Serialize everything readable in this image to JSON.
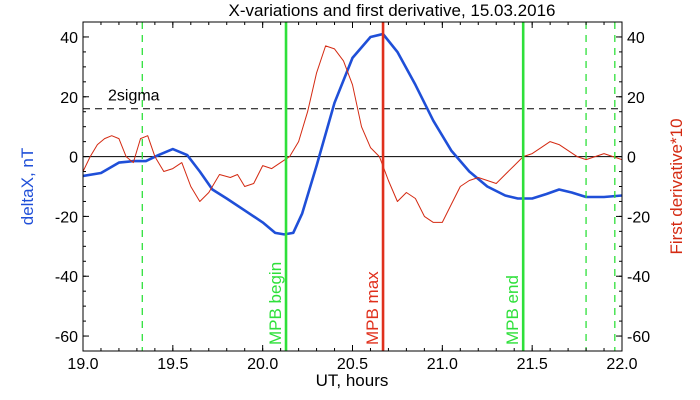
{
  "chart_data": {
    "type": "line",
    "title": "X-variations and first derivative, 15.03.2016",
    "xlabel": "UT, hours",
    "ylabel_left": "deltaX, nT",
    "ylabel_right": "First derivative*10",
    "xlim": [
      19.0,
      22.0
    ],
    "ylim": [
      -65,
      45
    ],
    "xticks": [
      19.0,
      19.5,
      20.0,
      20.5,
      21.0,
      21.5,
      22.0
    ],
    "xtick_labels": [
      "19.0",
      "19.5",
      "20.0",
      "20.5",
      "21.0",
      "21.5",
      "22.0"
    ],
    "yticks": [
      40,
      20,
      0,
      -20,
      -40,
      -60
    ],
    "ytick_labels": [
      "40",
      "20",
      "0",
      "-20",
      "-40",
      "-60"
    ],
    "colors": {
      "deltaX": "#1f4fd8",
      "derivative": "#d42a12",
      "zero_line": "#000000",
      "sigma_line": "#000000",
      "event_line_green": "#2ee03a",
      "event_line_red": "#e0301c",
      "dashed_green": "#2ee03a",
      "ylabel_left": "#1f4fd8",
      "ylabel_right": "#d42a12"
    },
    "series": [
      {
        "key": "deltaX",
        "axis": "left",
        "x": [
          19.0,
          19.1,
          19.2,
          19.28,
          19.35,
          19.42,
          19.5,
          19.58,
          19.65,
          19.72,
          19.8,
          19.9,
          20.0,
          20.07,
          20.12,
          20.17,
          20.22,
          20.3,
          20.4,
          20.5,
          20.6,
          20.67,
          20.75,
          20.85,
          20.95,
          21.05,
          21.15,
          21.25,
          21.35,
          21.42,
          21.5,
          21.58,
          21.65,
          21.72,
          21.8,
          21.9,
          22.0
        ],
        "values": [
          -6.5,
          -5.5,
          -2,
          -1.5,
          -1.5,
          0.5,
          2.5,
          0.5,
          -5,
          -11,
          -14,
          -18,
          -22,
          -25.5,
          -26,
          -25.5,
          -19,
          -3,
          18,
          33,
          40,
          41,
          35,
          24,
          12,
          2,
          -5,
          -10,
          -13,
          -14,
          -14,
          -12.5,
          -11,
          -12,
          -13.5,
          -13.5,
          -13
        ]
      },
      {
        "key": "derivative",
        "axis": "right",
        "x": [
          19.0,
          19.04,
          19.08,
          19.12,
          19.16,
          19.2,
          19.24,
          19.28,
          19.32,
          19.36,
          19.4,
          19.45,
          19.5,
          19.55,
          19.6,
          19.65,
          19.7,
          19.76,
          19.82,
          19.86,
          19.9,
          19.95,
          20.0,
          20.05,
          20.1,
          20.15,
          20.2,
          20.25,
          20.3,
          20.35,
          20.4,
          20.45,
          20.5,
          20.55,
          20.6,
          20.65,
          20.7,
          20.75,
          20.8,
          20.85,
          20.9,
          20.95,
          21.0,
          21.05,
          21.1,
          21.15,
          21.2,
          21.25,
          21.3,
          21.35,
          21.4,
          21.45,
          21.5,
          21.55,
          21.6,
          21.65,
          21.7,
          21.75,
          21.8,
          21.85,
          21.9,
          21.95,
          22.0
        ],
        "values": [
          -5,
          0,
          4,
          6,
          7,
          6,
          0,
          -2,
          6,
          7,
          0,
          -5,
          -4,
          -2,
          -10,
          -15,
          -12,
          -6,
          -7,
          -6,
          -10,
          -9,
          -3,
          -4,
          -2,
          0,
          5,
          15,
          28,
          37,
          36,
          32,
          24,
          10,
          3,
          0,
          -8,
          -15,
          -12,
          -14,
          -20,
          -22,
          -22,
          -16,
          -10,
          -8,
          -7,
          -8,
          -9,
          -6,
          -3,
          0,
          1,
          3,
          5,
          4,
          2,
          0,
          -1,
          0,
          1,
          0,
          -1
        ]
      }
    ],
    "hlines": [
      {
        "y": 0,
        "style": "solid"
      },
      {
        "y": 16,
        "style": "dashed",
        "label": "2sigma"
      }
    ],
    "vlines": [
      {
        "x": 19.33,
        "style": "dashed",
        "color": "green"
      },
      {
        "x": 20.13,
        "style": "solid",
        "color": "green",
        "label": "MPB begin"
      },
      {
        "x": 20.67,
        "style": "solid",
        "color": "red",
        "label": "MPB max"
      },
      {
        "x": 21.45,
        "style": "solid",
        "color": "green",
        "label": "MPB end"
      },
      {
        "x": 21.8,
        "style": "dashed",
        "color": "green"
      },
      {
        "x": 21.96,
        "style": "dashed",
        "color": "green"
      }
    ],
    "grid": false,
    "legend": "none"
  }
}
